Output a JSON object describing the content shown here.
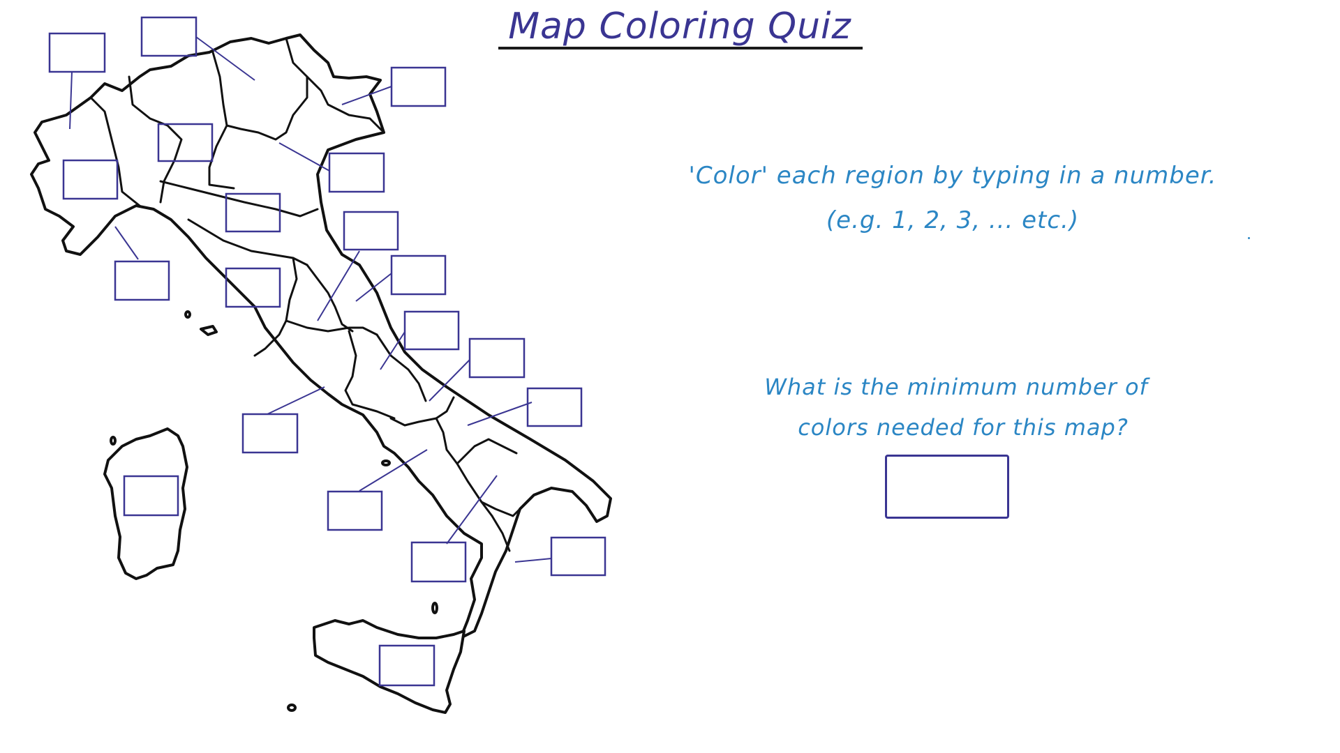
{
  "quiz": {
    "title": "Map Coloring Quiz",
    "instruction_line1": "'Color' each region by typing in a number.",
    "instruction_line2": "(e.g. 1, 2, 3, ... etc.)",
    "question_line1": "What is the minimum number of",
    "question_line2": "colors needed for this map?",
    "answer_value": ""
  },
  "map": {
    "region_input_count": 20,
    "region_values": [
      "",
      "",
      "",
      "",
      "",
      "",
      "",
      "",
      "",
      "",
      "",
      "",
      "",
      "",
      "",
      "",
      "",
      "",
      "",
      ""
    ]
  },
  "colors": {
    "title": "#3a3592",
    "instruction_text": "#2b86c4",
    "input_box_stroke": "#3a3592",
    "map_outline": "#111111"
  }
}
